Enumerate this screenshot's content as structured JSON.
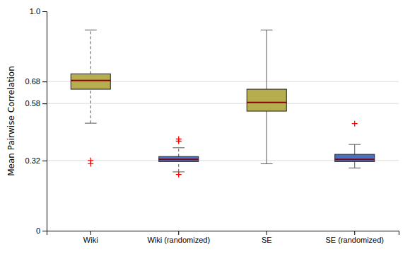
{
  "chart_data": {
    "type": "box",
    "ylabel": "Mean Pairwise Correlation",
    "categories": [
      "Wiki",
      "Wiki (randomized)",
      "SE",
      "SE (randomized)"
    ],
    "series": [
      {
        "color": "#b5ad4e",
        "line_style": "dashed",
        "med": 0.685,
        "q1": 0.645,
        "q3": 0.715,
        "whislo": 0.49,
        "whishi": 0.915,
        "fliers": [
          0.32,
          0.305
        ]
      },
      {
        "color": "#4472c4",
        "line_style": "dashed",
        "med": 0.325,
        "q1": 0.315,
        "q3": 0.338,
        "whislo": 0.268,
        "whishi": 0.378,
        "fliers": [
          0.256,
          0.408,
          0.418
        ]
      },
      {
        "color": "#b5ad4e",
        "line_style": "solid",
        "med": 0.585,
        "q1": 0.545,
        "q3": 0.645,
        "whislo": 0.305,
        "whishi": 0.915,
        "fliers": []
      },
      {
        "color": "#4472c4",
        "line_style": "solid",
        "med": 0.325,
        "q1": 0.315,
        "q3": 0.348,
        "whislo": 0.286,
        "whishi": 0.393,
        "fliers": [
          0.488
        ]
      }
    ],
    "ylim": [
      0.0,
      1.0
    ],
    "yticks": [
      0,
      0.32,
      0.58,
      0.68,
      {
        "value": 1.0,
        "label": "1.0"
      }
    ],
    "grid": true
  }
}
